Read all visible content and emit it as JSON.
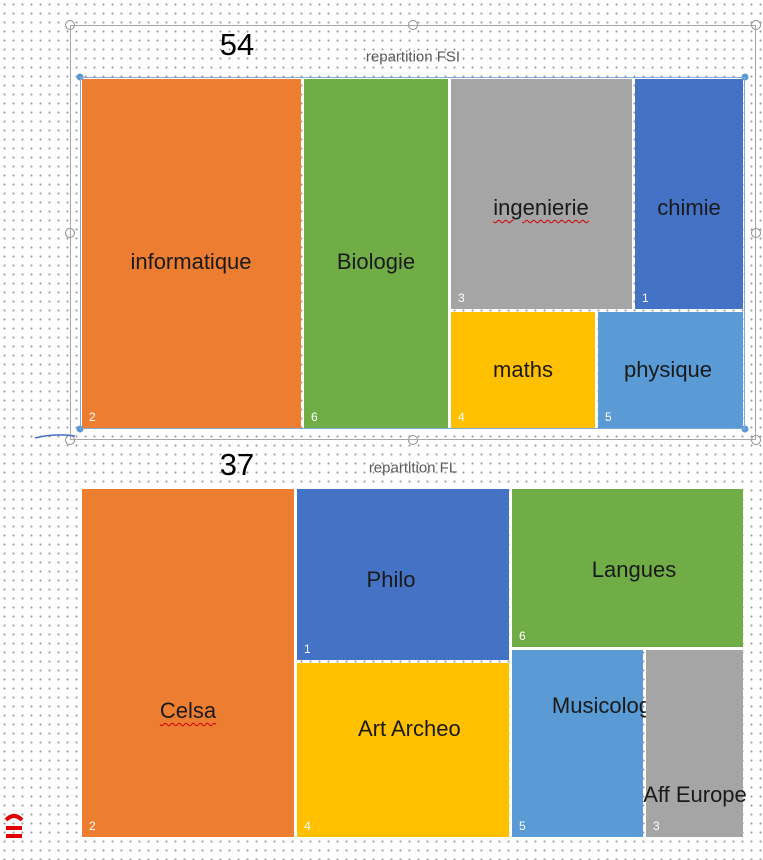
{
  "charts": [
    {
      "number": 54,
      "title": "repartition FSI",
      "tiles": [
        {
          "label": "informatique",
          "index": 2
        },
        {
          "label": "Biologie",
          "index": 6
        },
        {
          "label": "ingenierie",
          "index": 3
        },
        {
          "label": "chimie",
          "index": 1
        },
        {
          "label": "maths",
          "index": 4
        },
        {
          "label": "physique",
          "index": 5
        }
      ]
    },
    {
      "number": 37,
      "title": "repartition FL",
      "tiles": [
        {
          "label": "Celsa",
          "index": 2
        },
        {
          "label": "Philo",
          "index": 1
        },
        {
          "label": "Art Archeo",
          "index": 4
        },
        {
          "label": "Langues",
          "index": 6
        },
        {
          "label": "Musicologie",
          "index": 5
        },
        {
          "label": "Aff Europe",
          "index": 3
        }
      ]
    }
  ]
}
